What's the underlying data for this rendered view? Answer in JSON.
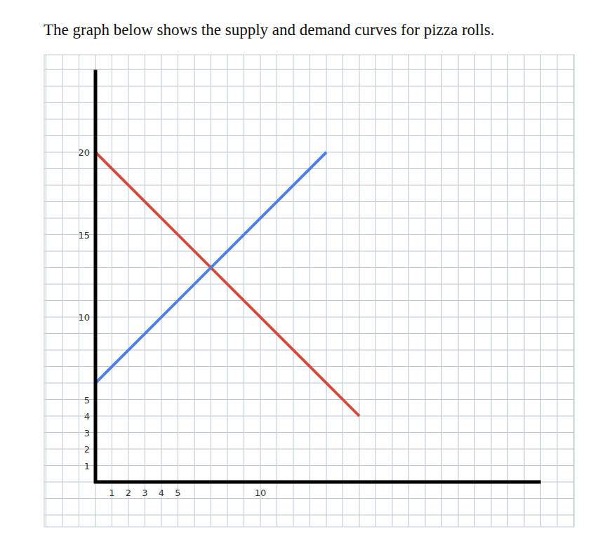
{
  "chart_data": {
    "type": "line",
    "title": "The graph below shows the supply and demand curves for pizza rolls.",
    "series": [
      {
        "color": "#d64a3b",
        "x": [
          0,
          16
        ],
        "values": [
          20,
          4
        ]
      },
      {
        "color": "#4a80e8",
        "x": [
          0,
          14
        ],
        "values": [
          6,
          20
        ]
      }
    ],
    "xlim": [
      0,
      27
    ],
    "ylim": [
      0,
      25
    ],
    "xticks": [
      1,
      2,
      3,
      4,
      5,
      10
    ],
    "yticks": [
      1,
      2,
      3,
      4,
      5,
      10,
      15,
      20
    ],
    "grid": true
  }
}
